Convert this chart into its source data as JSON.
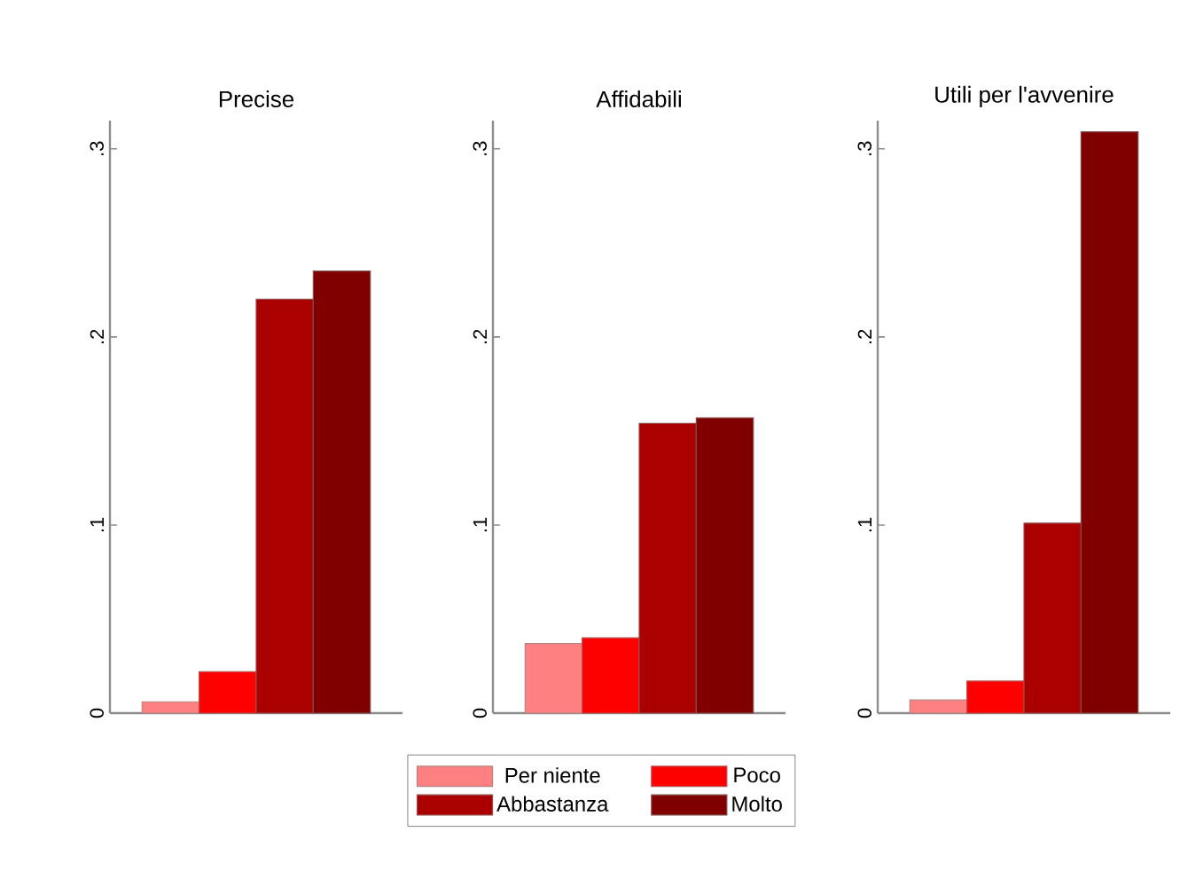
{
  "chart_data": [
    {
      "type": "bar",
      "title": "Precise",
      "categories": [
        null
      ],
      "legend": "bottom",
      "tick_labels": "y",
      "series": [
        {
          "name": "Per niente",
          "color": "#ff8080",
          "values": [
            0.006
          ]
        },
        {
          "name": "Poco",
          "color": "#ff0000",
          "values": [
            0.022
          ]
        },
        {
          "name": "Abbastanza",
          "color": "#aa0000",
          "values": [
            0.22
          ]
        },
        {
          "name": "Molto",
          "color": "#800000",
          "values": [
            0.235
          ]
        }
      ],
      "ylim": [
        0,
        0.315
      ],
      "yticks": [
        0,
        {
          "value": 0.1,
          "label": ".1"
        },
        {
          "value": 0.2,
          "label": ".2"
        },
        {
          "value": 0.3,
          "label": ".3"
        }
      ]
    },
    {
      "type": "bar",
      "title": "Affidabili",
      "categories": [
        null
      ],
      "tick_labels": "y",
      "series": [
        {
          "color": "#ff8080",
          "values": [
            0.037
          ]
        },
        {
          "color": "#ff0000",
          "values": [
            0.04
          ]
        },
        {
          "color": "#aa0000",
          "values": [
            0.154
          ]
        },
        {
          "color": "#800000",
          "values": [
            0.157
          ]
        }
      ],
      "ylim": [
        0,
        0.315
      ],
      "yticks": [
        0,
        {
          "value": 0.1,
          "label": ".1"
        },
        {
          "value": 0.2,
          "label": ".2"
        },
        {
          "value": 0.3,
          "label": ".3"
        }
      ]
    },
    {
      "type": "bar",
      "title": "Utili per l'avvenire",
      "categories": [
        null
      ],
      "tick_labels": "y",
      "series": [
        {
          "color": "#ff8080",
          "values": [
            0.007
          ]
        },
        {
          "color": "#ff0000",
          "values": [
            0.017
          ]
        },
        {
          "color": "#aa0000",
          "values": [
            0.101
          ]
        },
        {
          "color": "#800000",
          "values": [
            0.309
          ]
        }
      ],
      "ylim": [
        0,
        0.315
      ],
      "yticks": [
        0,
        {
          "value": 0.1,
          "label": ".1"
        },
        {
          "value": 0.2,
          "label": ".2"
        },
        {
          "value": 0.3,
          "label": ".3"
        }
      ]
    }
  ]
}
